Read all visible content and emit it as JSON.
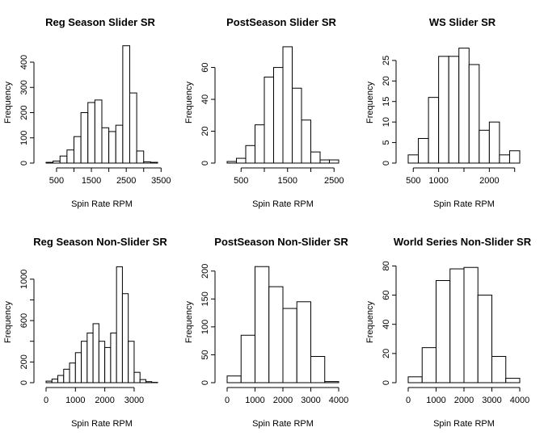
{
  "chart_data": [
    {
      "type": "histogram",
      "title": "Reg Season Slider SR",
      "xlabel": "Spin Rate RPM",
      "ylabel": "Frequency",
      "bins": [
        200,
        400,
        600,
        800,
        1000,
        1200,
        1400,
        1600,
        1800,
        2000,
        2200,
        2400,
        2600,
        2800,
        3000,
        3200,
        3400
      ],
      "counts": [
        3,
        8,
        28,
        52,
        105,
        200,
        240,
        250,
        140,
        125,
        150,
        465,
        278,
        48,
        5,
        3
      ],
      "xlim": [
        200,
        3400
      ],
      "ylim": [
        0,
        480
      ],
      "xticks": [
        500,
        1500,
        2500,
        3500
      ],
      "xticks_unlabeled": [
        1000,
        2000,
        3000
      ],
      "yticks": [
        0,
        100,
        200,
        300,
        400
      ],
      "color": "#ffffff",
      "edgecolor": "#000000"
    },
    {
      "type": "histogram",
      "title": "PostSeason Slider SR",
      "xlabel": "Spin Rate RPM",
      "ylabel": "Frequency",
      "bins": [
        200,
        400,
        600,
        800,
        1000,
        1200,
        1400,
        1600,
        1800,
        2000,
        2200,
        2400,
        2600
      ],
      "counts": [
        1,
        3,
        11,
        24,
        54,
        60,
        73,
        47,
        27,
        7,
        2,
        2
      ],
      "xlim": [
        200,
        2600
      ],
      "ylim": [
        0,
        76
      ],
      "xticks": [
        500,
        1500,
        2500
      ],
      "xticks_unlabeled": [
        1000,
        2000
      ],
      "yticks": [
        0,
        20,
        40,
        60
      ],
      "color": "#ffffff",
      "edgecolor": "#000000"
    },
    {
      "type": "histogram",
      "title": "WS Slider SR",
      "xlabel": "Spin Rate RPM",
      "ylabel": "Frequency",
      "bins": [
        400,
        600,
        800,
        1000,
        1200,
        1400,
        1600,
        1800,
        2000,
        2200,
        2400,
        2600
      ],
      "counts": [
        2,
        6,
        16,
        26,
        26,
        28,
        24,
        8,
        10,
        2,
        3
      ],
      "xlim": [
        400,
        2600
      ],
      "ylim": [
        0,
        29.5
      ],
      "xticks": [
        500,
        1000,
        2000
      ],
      "xticks_unlabeled": [
        1500,
        2500
      ],
      "yticks": [
        0,
        5,
        10,
        15,
        20,
        25
      ],
      "color": "#ffffff",
      "edgecolor": "#000000"
    },
    {
      "type": "histogram",
      "title": "Reg Season Non-Slider SR",
      "xlabel": "Spin Rate RPM",
      "ylabel": "Frequency",
      "bins": [
        0,
        200,
        400,
        600,
        800,
        1000,
        1200,
        1400,
        1600,
        1800,
        2000,
        2200,
        2400,
        2600,
        2800,
        3000,
        3200,
        3400,
        3600,
        3800
      ],
      "counts": [
        15,
        35,
        70,
        130,
        190,
        290,
        400,
        480,
        570,
        400,
        340,
        480,
        1120,
        860,
        400,
        100,
        30,
        10,
        3
      ],
      "xlim": [
        0,
        3800
      ],
      "ylim": [
        0,
        1170
      ],
      "xticks": [
        0,
        1000,
        2000,
        3000
      ],
      "xticks_unlabeled": [],
      "yticks": [
        0,
        200,
        600,
        1000
      ],
      "yticks_unlabeled": [
        400,
        800
      ],
      "color": "#ffffff",
      "edgecolor": "#000000"
    },
    {
      "type": "histogram",
      "title": "PostSeason Non-Slider SR",
      "xlabel": "Spin Rate RPM",
      "ylabel": "Frequency",
      "bins": [
        0,
        500,
        1000,
        1500,
        2000,
        2500,
        3000,
        3500,
        4000
      ],
      "counts": [
        12,
        85,
        208,
        172,
        133,
        145,
        47,
        2
      ],
      "xlim": [
        0,
        4000
      ],
      "ylim": [
        0,
        217
      ],
      "xticks": [
        0,
        1000,
        2000,
        3000,
        4000
      ],
      "xticks_unlabeled": [],
      "yticks": [
        0,
        50,
        100,
        150,
        200
      ],
      "color": "#ffffff",
      "edgecolor": "#000000"
    },
    {
      "type": "histogram",
      "title": "World Series Non-Slider SR",
      "xlabel": "Spin Rate RPM",
      "ylabel": "Frequency",
      "bins": [
        0,
        500,
        1000,
        1500,
        2000,
        2500,
        3000,
        3500,
        4000
      ],
      "counts": [
        4,
        24,
        70,
        78,
        79,
        60,
        18,
        3
      ],
      "xlim": [
        0,
        4000
      ],
      "ylim": [
        0,
        83
      ],
      "xticks": [
        0,
        1000,
        2000,
        3000,
        4000
      ],
      "xticks_unlabeled": [],
      "yticks": [
        0,
        20,
        40,
        60,
        80
      ],
      "color": "#ffffff",
      "edgecolor": "#000000"
    }
  ]
}
